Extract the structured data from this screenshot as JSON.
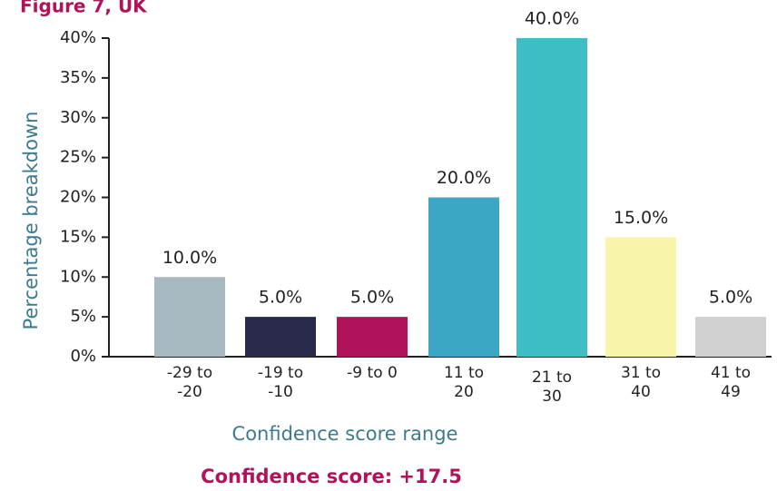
{
  "chart_data": {
    "type": "bar",
    "title": "Figure 7, UK",
    "xlabel": "Confidence score range",
    "ylabel": "Percentage breakdown",
    "annotation": "Confidence score: +17.5",
    "categories": [
      "-29 to -20",
      "-19 to -10",
      "-9 to 0",
      "11 to 20",
      "21 to 30",
      "31 to 40",
      "41 to 49"
    ],
    "values": [
      10,
      5,
      5,
      20,
      40,
      15,
      5
    ],
    "value_labels": [
      "10.0%",
      "5.0%",
      "5.0%",
      "20.0%",
      "40.0%",
      "15.0%",
      "5.0%"
    ],
    "colors": [
      "#a6b9c1",
      "#29294a",
      "#b01359",
      "#3ba7c5",
      "#3ebdc4",
      "#f8f4a8",
      "#d1d1d1"
    ],
    "ylim": [
      0,
      40
    ],
    "yticks": [
      {
        "value": 0,
        "label": "0%"
      },
      {
        "value": 5,
        "label": "5%"
      },
      {
        "value": 10,
        "label": "10%"
      },
      {
        "value": 15,
        "label": "15%"
      },
      {
        "value": 20,
        "label": "20%"
      },
      {
        "value": 25,
        "label": "25%"
      },
      {
        "value": 30,
        "label": "30%"
      },
      {
        "value": 35,
        "label": "35%"
      },
      {
        "value": 40,
        "label": "40%"
      }
    ]
  }
}
